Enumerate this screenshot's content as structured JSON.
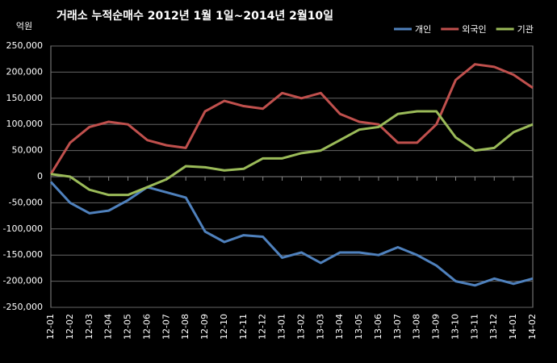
{
  "chart_data": {
    "type": "line",
    "title": "거래소  누적순매수 2012년 1월 1일~2014년 2월10일",
    "y_unit": "억원",
    "categories": [
      "12-01",
      "12-02",
      "12-03",
      "12-04",
      "12-05",
      "12-06",
      "12-07",
      "12-08",
      "12-09",
      "12-10",
      "12-11",
      "12-12",
      "13-01",
      "13-02",
      "13-03",
      "13-04",
      "13-05",
      "13-06",
      "13-07",
      "13-08",
      "13-09",
      "13-10",
      "13-11",
      "13-12",
      "14-01",
      "14-02"
    ],
    "series": [
      {
        "name": "개인",
        "color": "#4f81bd",
        "values": [
          -10000,
          -50000,
          -70000,
          -65000,
          -45000,
          -20000,
          -30000,
          -40000,
          -105000,
          -125000,
          -112000,
          -115000,
          -155000,
          -145000,
          -165000,
          -145000,
          -145000,
          -150000,
          -135000,
          -150000,
          -170000,
          -200000,
          -208000,
          -195000,
          -205000,
          -195000
        ]
      },
      {
        "name": "외국인",
        "color": "#c0504d",
        "values": [
          5000,
          65000,
          95000,
          105000,
          100000,
          70000,
          60000,
          55000,
          125000,
          145000,
          135000,
          130000,
          160000,
          150000,
          160000,
          120000,
          105000,
          100000,
          65000,
          65000,
          100000,
          185000,
          215000,
          210000,
          195000,
          170000
        ]
      },
      {
        "name": "기관",
        "color": "#9bbb59",
        "values": [
          5000,
          0,
          -25000,
          -35000,
          -35000,
          -20000,
          -5000,
          20000,
          18000,
          12000,
          15000,
          35000,
          35000,
          45000,
          50000,
          70000,
          90000,
          95000,
          120000,
          125000,
          125000,
          75000,
          50000,
          55000,
          85000,
          100000
        ]
      }
    ],
    "ylim": [
      -250000,
      250000
    ],
    "yticks": [
      {
        "value": -250000,
        "label": "-250,000"
      },
      {
        "value": -200000,
        "label": "-200,000"
      },
      {
        "value": -150000,
        "label": "-150,000"
      },
      {
        "value": -100000,
        "label": "-100,000"
      },
      {
        "value": -50000,
        "label": "-50,000"
      },
      0,
      {
        "value": 50000,
        "label": "50,000"
      },
      {
        "value": 100000,
        "label": "100,000"
      },
      {
        "value": 150000,
        "label": "150,000"
      },
      {
        "value": 200000,
        "label": "200,000"
      },
      {
        "value": 250000,
        "label": "250,000"
      }
    ],
    "grid": true,
    "legend": "top-right"
  }
}
